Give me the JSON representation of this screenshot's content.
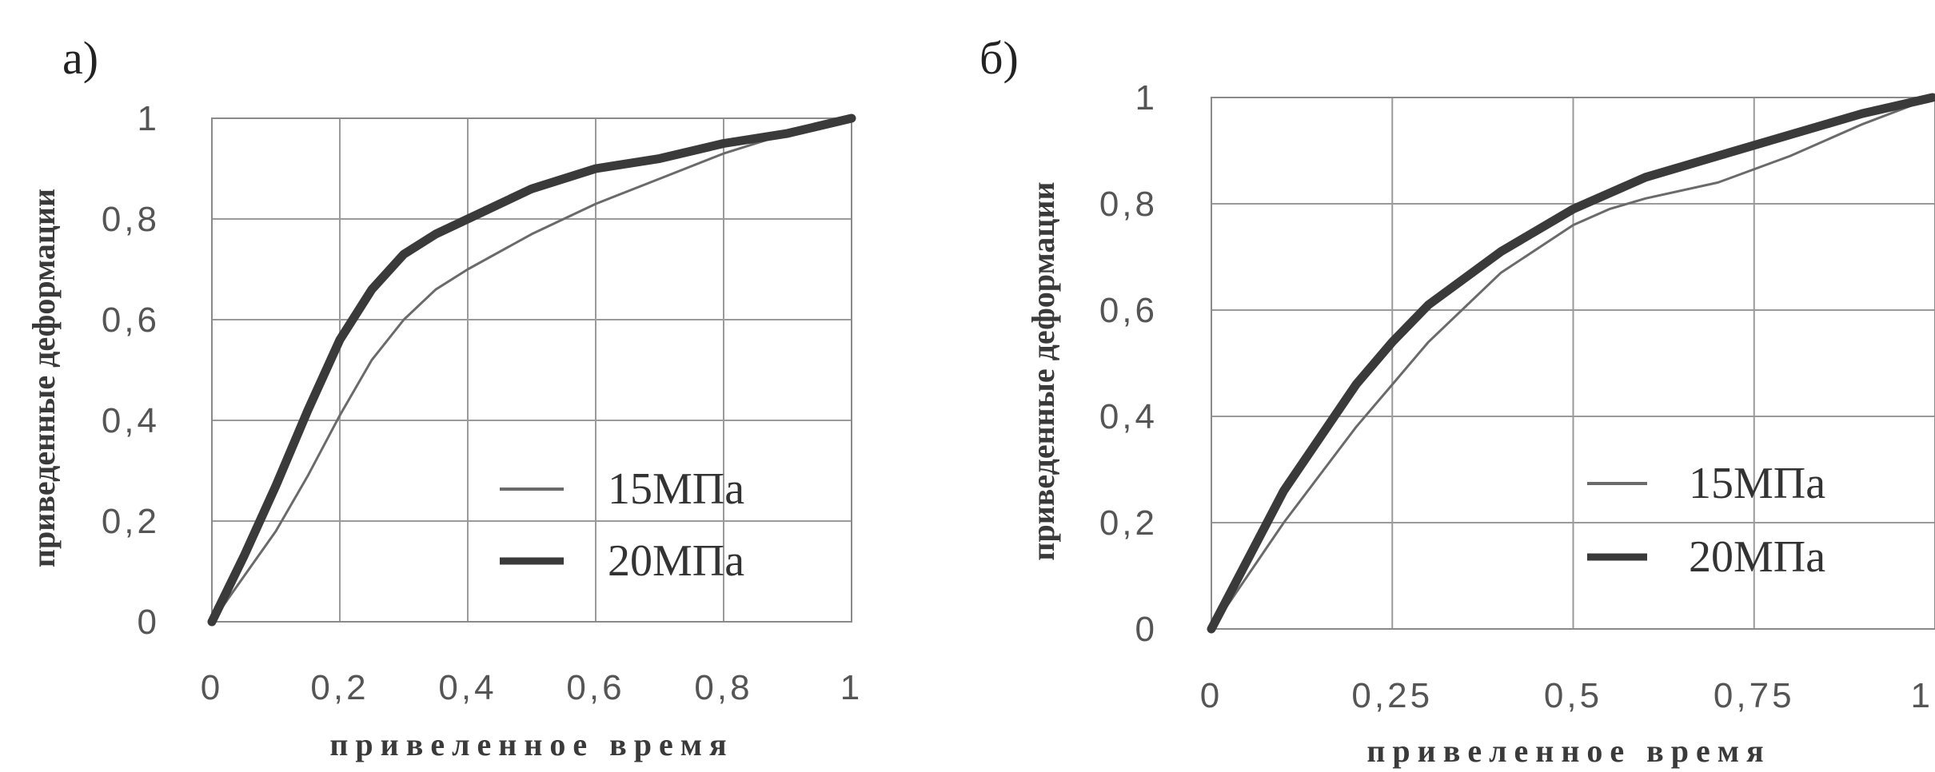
{
  "chart_data": [
    {
      "type": "line",
      "panel_label": "а)",
      "title": "",
      "xlabel": "привеленное время",
      "ylabel": "приведенные деформации",
      "xlim": [
        0,
        1
      ],
      "ylim": [
        0,
        1
      ],
      "x_ticks": [
        0,
        0.2,
        0.4,
        0.6,
        0.8,
        1
      ],
      "x_tick_labels": [
        "0",
        "0,2",
        "0,4",
        "0,6",
        "0,8",
        "1"
      ],
      "y_ticks": [
        0,
        0.2,
        0.4,
        0.6,
        0.8,
        1
      ],
      "y_tick_labels": [
        "0",
        "0,2",
        "0,4",
        "0,6",
        "0,8",
        "1"
      ],
      "grid": true,
      "legend_position": "bottom-right",
      "series": [
        {
          "name": "15МПа",
          "style": "thin",
          "color": "#6a6a6a",
          "x": [
            0,
            0.05,
            0.1,
            0.15,
            0.2,
            0.25,
            0.3,
            0.35,
            0.4,
            0.5,
            0.6,
            0.7,
            0.8,
            0.9,
            1.0
          ],
          "y": [
            0,
            0.09,
            0.18,
            0.29,
            0.41,
            0.52,
            0.6,
            0.66,
            0.7,
            0.77,
            0.83,
            0.88,
            0.93,
            0.97,
            1.0
          ]
        },
        {
          "name": "20МПа",
          "style": "thick",
          "color": "#3a3a3a",
          "x": [
            0,
            0.05,
            0.1,
            0.15,
            0.2,
            0.25,
            0.3,
            0.35,
            0.4,
            0.5,
            0.6,
            0.7,
            0.8,
            0.9,
            1.0
          ],
          "y": [
            0,
            0.13,
            0.27,
            0.42,
            0.56,
            0.66,
            0.73,
            0.77,
            0.8,
            0.86,
            0.9,
            0.92,
            0.95,
            0.97,
            1.0
          ]
        }
      ]
    },
    {
      "type": "line",
      "panel_label": "б)",
      "title": "",
      "xlabel": "привеленное время",
      "ylabel": "приведенные деформации",
      "xlim": [
        0,
        1
      ],
      "ylim": [
        0,
        1
      ],
      "x_ticks": [
        0,
        0.25,
        0.5,
        0.75,
        1
      ],
      "x_tick_labels": [
        "0",
        "0,25",
        "0,5",
        "0,75",
        "1"
      ],
      "y_ticks": [
        0,
        0.2,
        0.4,
        0.6,
        0.8,
        1
      ],
      "y_tick_labels": [
        "0",
        "0,2",
        "0,4",
        "0,6",
        "0,8",
        "1"
      ],
      "grid": true,
      "legend_position": "bottom-right",
      "series": [
        {
          "name": "15МПа",
          "style": "thin",
          "color": "#6a6a6a",
          "x": [
            0,
            0.1,
            0.2,
            0.25,
            0.3,
            0.4,
            0.5,
            0.55,
            0.6,
            0.7,
            0.8,
            0.9,
            1.0
          ],
          "y": [
            0,
            0.2,
            0.38,
            0.46,
            0.54,
            0.67,
            0.76,
            0.79,
            0.81,
            0.84,
            0.89,
            0.95,
            1.0
          ]
        },
        {
          "name": "20МПа",
          "style": "thick",
          "color": "#3a3a3a",
          "x": [
            0,
            0.1,
            0.2,
            0.25,
            0.3,
            0.4,
            0.5,
            0.55,
            0.6,
            0.7,
            0.8,
            0.9,
            1.0
          ],
          "y": [
            0,
            0.26,
            0.46,
            0.54,
            0.61,
            0.71,
            0.79,
            0.82,
            0.85,
            0.89,
            0.93,
            0.97,
            1.0
          ]
        }
      ]
    }
  ]
}
